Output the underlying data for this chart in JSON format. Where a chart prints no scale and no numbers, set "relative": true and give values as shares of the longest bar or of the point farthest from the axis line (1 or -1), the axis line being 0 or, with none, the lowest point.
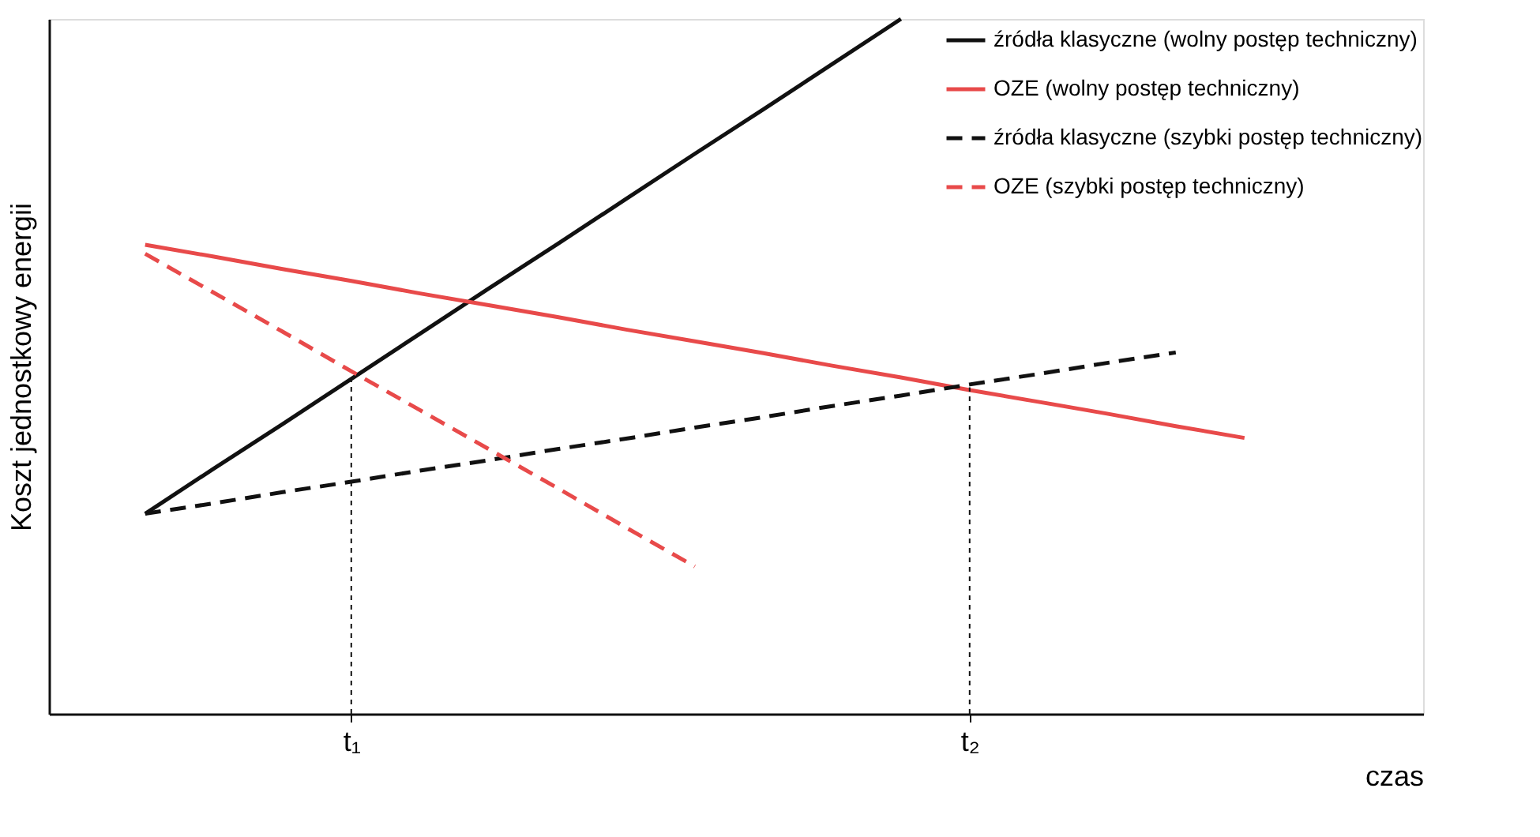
{
  "chart_data": {
    "type": "line",
    "relative": true,
    "xlabel": "czas",
    "ylabel": "Koszt jednostkowy energii",
    "tick_labels": "x",
    "grid": false,
    "legend": "top right",
    "marker": "none",
    "categories": [
      null,
      null,
      null,
      "t₁",
      null,
      null,
      null,
      null,
      null,
      null,
      null,
      null,
      "t₂",
      null,
      null,
      null,
      null
    ],
    "series": [
      {
        "name": "źródła klasyczne (wolny postęp techniczny)",
        "color": "#111111",
        "line_style": "solid",
        "values": [
          0.288,
          0.353,
          0.417,
          0.482,
          0.547,
          0.612,
          0.676,
          0.741,
          0.806,
          0.87,
          0.935,
          1.0,
          null,
          null,
          null,
          null,
          null
        ]
      },
      {
        "name": "OZE (wolny postęp techniczny)",
        "color": "#e84a4a",
        "line_style": "solid",
        "values": [
          0.675,
          0.658,
          0.64,
          0.623,
          0.605,
          0.588,
          0.571,
          0.553,
          0.536,
          0.519,
          0.501,
          0.484,
          0.466,
          0.449,
          0.432,
          0.414,
          0.397
        ]
      },
      {
        "name": "źródła klasyczne (szybki postęp techniczny)",
        "color": "#111111",
        "line_style": "dashed",
        "values": [
          0.288,
          0.303,
          0.319,
          0.334,
          0.35,
          0.365,
          0.381,
          0.396,
          0.412,
          0.427,
          0.443,
          0.458,
          0.474,
          0.489,
          0.505,
          0.52,
          null
        ]
      },
      {
        "name": "OZE (szybki postęp techniczny)",
        "color": "#e84a4a",
        "line_style": "dashed",
        "values": [
          0.662,
          0.606,
          0.55,
          0.493,
          0.437,
          0.381,
          0.325,
          0.268,
          0.212,
          null,
          null,
          null,
          null,
          null,
          null,
          null,
          null
        ]
      }
    ],
    "ref_lines": [
      {
        "axis": "x",
        "value": "t₁",
        "color": "#111111",
        "line_style": "dotted"
      },
      {
        "axis": "x",
        "value": "t₂",
        "color": "#111111",
        "line_style": "dotted"
      }
    ]
  }
}
